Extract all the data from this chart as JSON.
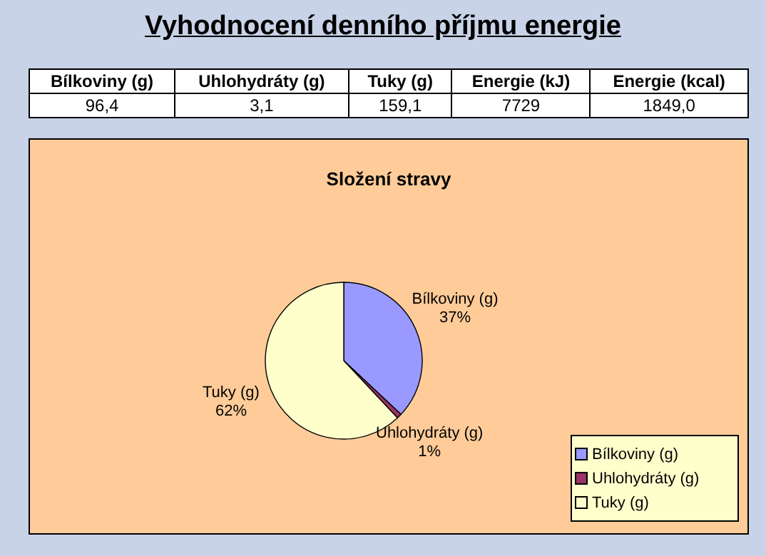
{
  "chart_data": {
    "type": "pie",
    "title": "Vyhodnocení denního příjmu energie",
    "subtitle": "Složení stravy",
    "categories": [
      "Bílkoviny (g)",
      "Uhlohydráty (g)",
      "Tuky (g)"
    ],
    "values": [
      37,
      1,
      62
    ],
    "value_labels": [
      "37%",
      "1%",
      "62%"
    ],
    "colors": [
      "#9999ff",
      "#993366",
      "#ffffcc"
    ],
    "legend": "bottom right",
    "annotations": [
      "Bílkoviny (g)",
      "Uhlohydráty (g)",
      "Tuky (g)",
      "Energie (kJ)",
      "Energie (kcal)",
      "96,4",
      "3,1",
      "159,1",
      "7729",
      "1849,0"
    ]
  }
}
